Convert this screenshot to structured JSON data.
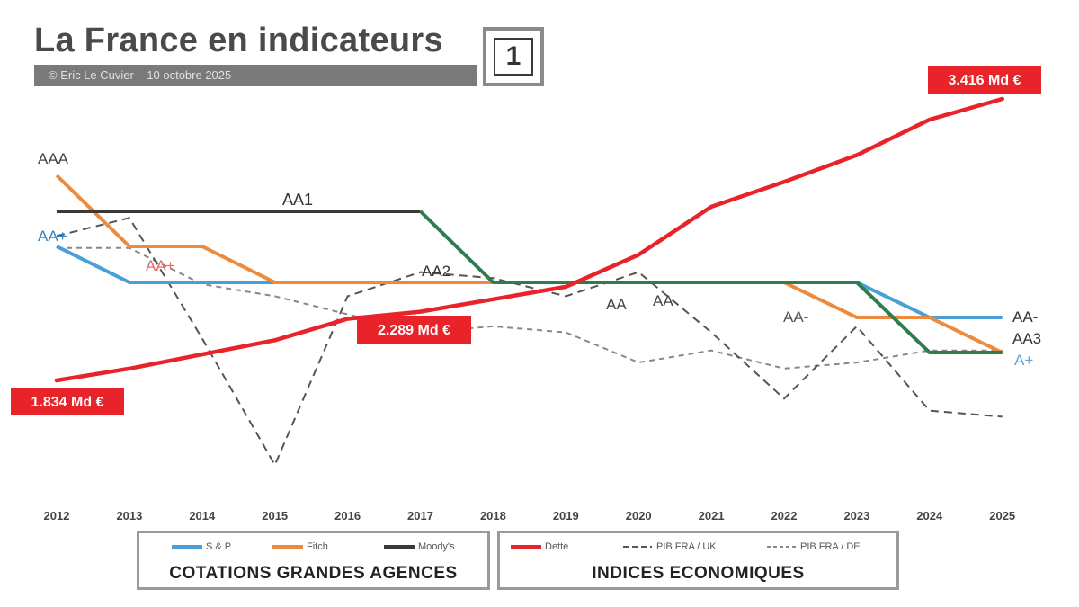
{
  "header": {
    "title": "La France en indicateurs",
    "subtitle": "© Eric Le Cuvier – 10 octobre 2025",
    "badge": "1"
  },
  "colors": {
    "sp": "#4a9fd8",
    "fitch": "#ee8a3c",
    "moodys": "#3a3a3a",
    "moodys_recent": "#2e7d4f",
    "dette": "#e8232a",
    "pib_uk": "#555555",
    "pib_de": "#888888"
  },
  "legend": {
    "agences": {
      "title": "COTATIONS  GRANDES AGENCES",
      "items": [
        "S & P",
        "Fitch",
        "Moody's"
      ]
    },
    "indices": {
      "title": "INDICES ECONOMIQUES",
      "items": [
        "Dette",
        "PIB FRA / UK",
        "PIB FRA / DE"
      ]
    }
  },
  "chart_data": {
    "type": "line",
    "x": [
      "2012",
      "2013",
      "2014",
      "2015",
      "2016",
      "2017",
      "2018",
      "2019",
      "2020",
      "2021",
      "2022",
      "2023",
      "2024",
      "2025"
    ],
    "rating_scale": [
      "A+",
      "AA-",
      "AA",
      "AA+",
      "AAA"
    ],
    "series": [
      {
        "name": "S & P",
        "kind": "rating",
        "values": [
          "AA+",
          "AA",
          "AA",
          "AA",
          "AA",
          "AA",
          "AA",
          "AA",
          "AA",
          "AA",
          "AA",
          "AA",
          "AA-",
          "AA-"
        ]
      },
      {
        "name": "Fitch",
        "kind": "rating",
        "values": [
          "AAA",
          "AA+",
          "AA+",
          "AA",
          "AA",
          "AA",
          "AA",
          "AA",
          "AA",
          "AA",
          "AA",
          "AA-",
          "AA-",
          "A+"
        ]
      },
      {
        "name": "Moody's",
        "kind": "rating",
        "values": [
          "AA1",
          "AA1",
          "AA1",
          "AA1",
          "AA1",
          "AA1",
          "AA2",
          "AA2",
          "AA2",
          "AA2",
          "AA2",
          "AA2",
          "AA3",
          "AA3"
        ]
      },
      {
        "name": "Dette",
        "kind": "debt_Md_EUR",
        "values": [
          1834,
          1900,
          1980,
          2060,
          2180,
          2220,
          2290,
          2360,
          2540,
          2810,
          2950,
          3100,
          3300,
          3416
        ]
      },
      {
        "name": "PIB FRA / UK",
        "kind": "index",
        "values": [
          1.04,
          1.055,
          0.955,
          0.85,
          0.99,
          1.01,
          1.005,
          0.99,
          1.01,
          0.96,
          0.905,
          0.965,
          0.895,
          0.89
        ]
      },
      {
        "name": "PIB FRA / DE",
        "kind": "index",
        "values": [
          1.03,
          1.03,
          1.0,
          0.99,
          0.975,
          0.96,
          0.965,
          0.96,
          0.935,
          0.945,
          0.93,
          0.935,
          0.945,
          0.945
        ]
      }
    ],
    "annotations": {
      "agency_start": [
        "AAA",
        "AA+"
      ],
      "agency_middle": [
        "AA1",
        "AA+",
        "AA2",
        "AA",
        "AA",
        "AA-"
      ],
      "agency_end": [
        "AA-",
        "AA3",
        "A+"
      ],
      "debt_callouts": [
        "1.834 Md €",
        "2.289 Md €",
        "3.416 Md €"
      ]
    }
  }
}
